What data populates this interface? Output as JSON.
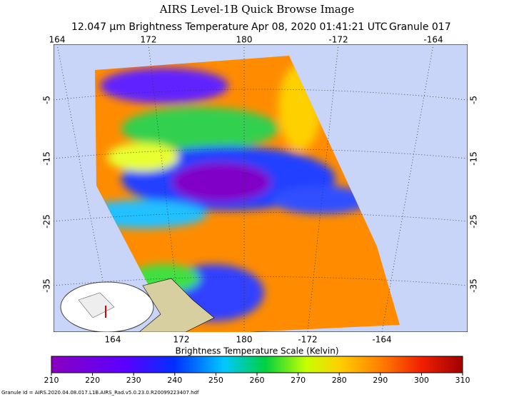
{
  "header": {
    "title": "AIRS Level-1B Quick Browse Image",
    "subtitle_quantity": "12.047 μm Brightness Temperature",
    "subtitle_time": "Apr 08, 2020 01:41:21 UTC",
    "subtitle_granule": "Granule 017"
  },
  "map": {
    "top_lon_labels": [
      "164",
      "172",
      "180",
      "-172",
      "-164"
    ],
    "bottom_lon_labels": [
      "164",
      "172",
      "180",
      "-172",
      "-164"
    ],
    "left_lat_labels": [
      "-5",
      "-15",
      "-25",
      "-35"
    ],
    "right_lat_labels": [
      "-5",
      "-15",
      "-25",
      "-35"
    ]
  },
  "colorbar": {
    "label": "Brightness Temperature Scale (Kelvin)",
    "range": [
      210,
      310
    ],
    "ticks": [
      210,
      220,
      230,
      240,
      250,
      260,
      270,
      280,
      290,
      300,
      310
    ]
  },
  "footer": {
    "granule_id": "Granule Id = AIRS.2020.04.08.017.L1B.AIRS_Rad.v5.0.23.0.R20099223407.hdf"
  }
}
